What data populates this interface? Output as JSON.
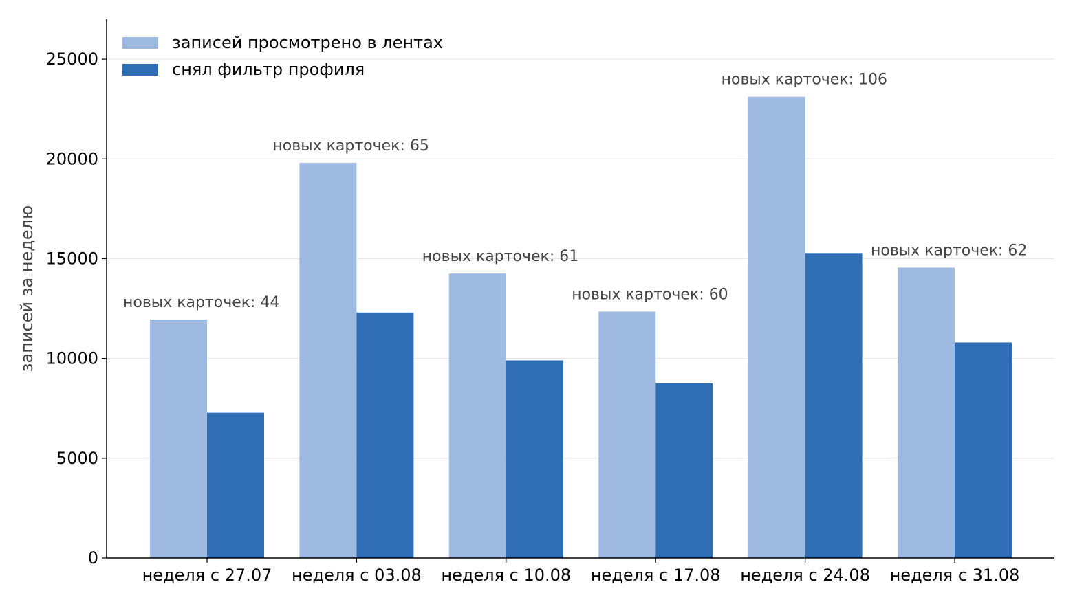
{
  "chart_data": {
    "type": "bar",
    "categories": [
      "неделя с 27.07",
      "неделя с 03.08",
      "неделя с 10.08",
      "неделя с 17.08",
      "неделя с 24.08",
      "неделя с 31.08"
    ],
    "series": [
      {
        "name": "записей просмотрено в лентах",
        "values": [
          11950,
          19800,
          14250,
          12350,
          23120,
          14550
        ],
        "color": "#9ebae0"
      },
      {
        "name": "снял фильтр профиля",
        "values": [
          7280,
          12300,
          9900,
          8750,
          15280,
          10800
        ],
        "color": "#2f6eb5"
      }
    ],
    "annotations": [
      "новых карточек: 44",
      "новых карточек: 65",
      "новых карточек: 61",
      "новых карточек: 60",
      "новых карточек: 106",
      "новых карточек: 62"
    ],
    "xlabel": "",
    "ylabel": "записей за неделю",
    "ylim": [
      0,
      27000
    ],
    "yticks": [
      0,
      5000,
      10000,
      15000,
      20000,
      25000
    ],
    "grid": "horizontal",
    "legend": "top-left"
  }
}
